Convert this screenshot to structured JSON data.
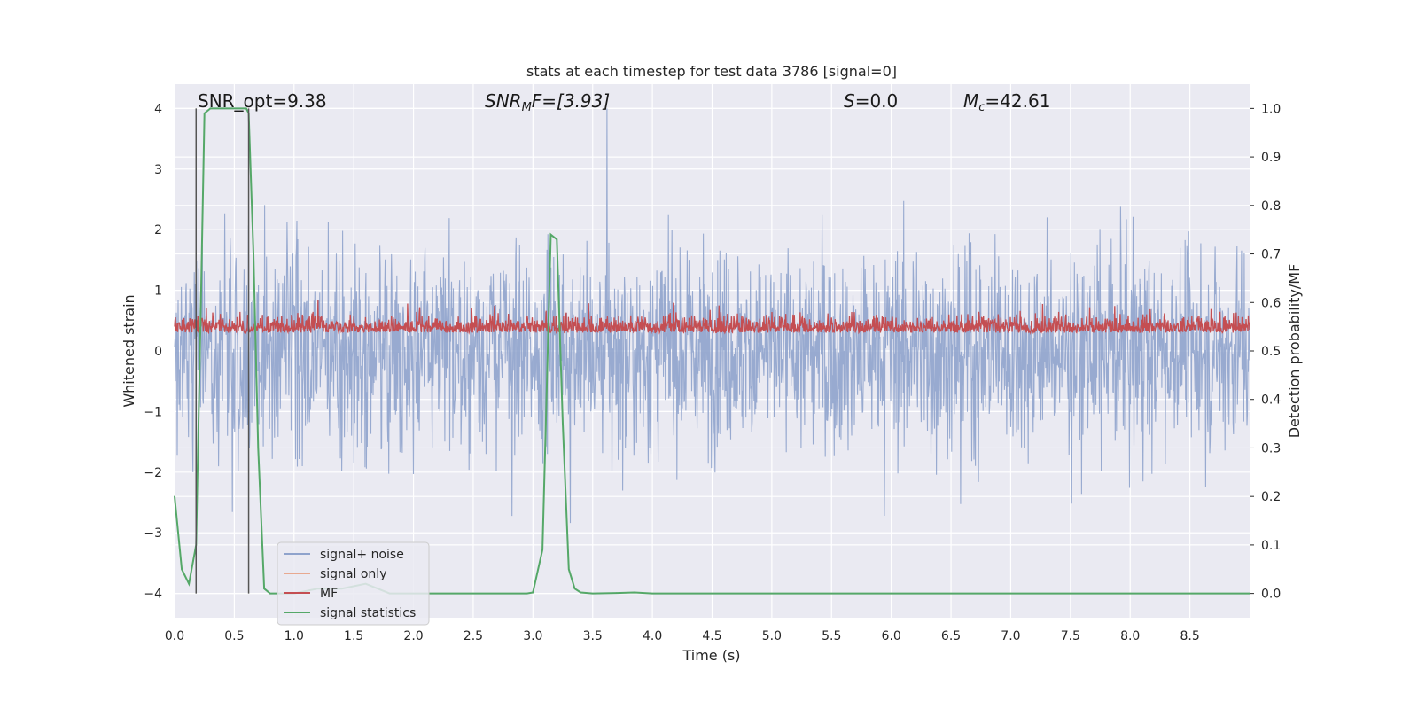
{
  "chart_data": {
    "type": "line",
    "title": "stats at each timestep for test data 3786 [signal=0]",
    "xlabel": "Time (s)",
    "ylabel": "Whitened strain",
    "ylabel_right": "Detection probability/MF",
    "xlim": [
      0,
      9.0
    ],
    "ylim": [
      -4.4,
      4.4
    ],
    "ylim_right": [
      -0.05,
      1.05
    ],
    "xticks": [
      "0.0",
      "0.5",
      "1.0",
      "1.5",
      "2.0",
      "2.5",
      "3.0",
      "3.5",
      "4.0",
      "4.5",
      "5.0",
      "5.5",
      "6.0",
      "6.5",
      "7.0",
      "7.5",
      "8.0",
      "8.5"
    ],
    "xtick_values": [
      0,
      0.5,
      1.0,
      1.5,
      2.0,
      2.5,
      3.0,
      3.5,
      4.0,
      4.5,
      5.0,
      5.5,
      6.0,
      6.5,
      7.0,
      7.5,
      8.0,
      8.5
    ],
    "yticks_left": [
      "4",
      "3",
      "2",
      "1",
      "0",
      "−1",
      "−2",
      "−3",
      "−4"
    ],
    "ytick_values_left": [
      4,
      3,
      2,
      1,
      0,
      -1,
      -2,
      -3,
      -4
    ],
    "yticks_right": [
      "1.0",
      "0.9",
      "0.8",
      "0.7",
      "0.6",
      "0.5",
      "0.4",
      "0.3",
      "0.2",
      "0.1",
      "0.0"
    ],
    "ytick_values_right": [
      1.0,
      0.9,
      0.8,
      0.7,
      0.6,
      0.5,
      0.4,
      0.3,
      0.2,
      0.1,
      0.0
    ],
    "grid": true,
    "legend_placement": "lower-left",
    "annotations": {
      "snr_opt": "SNR_opt=9.38",
      "snr_mf_name": "SNR",
      "snr_mf_sub": "M",
      "snr_mf_rest": "F=[3.93]",
      "s_name": "S",
      "s_rest": "=0.0",
      "mc_name": "M",
      "mc_sub": "c",
      "mc_rest": "=42.61"
    },
    "vlines_x": [
      0.18,
      0.62
    ],
    "series": [
      {
        "name": "signal+ noise",
        "color": "#8fa3cc",
        "axis": "left",
        "kind": "noise",
        "amplitude": 1.0
      },
      {
        "name": "signal only",
        "color": "#e8a990",
        "axis": "left",
        "values": []
      },
      {
        "name": "MF",
        "color": "#c44e52",
        "axis": "left",
        "kind": "noise",
        "baseline": 0.3,
        "amplitude": 0.2
      },
      {
        "name": "signal statistics",
        "color": "#55a868",
        "axis": "right",
        "x": [
          0.0,
          0.06,
          0.12,
          0.18,
          0.22,
          0.25,
          0.3,
          0.4,
          0.5,
          0.6,
          0.62,
          0.66,
          0.7,
          0.75,
          0.8,
          0.9,
          1.0,
          1.2,
          1.4,
          1.6,
          1.8,
          2.0,
          2.5,
          2.95,
          3.0,
          3.08,
          3.15,
          3.2,
          3.25,
          3.3,
          3.35,
          3.4,
          3.5,
          3.7,
          3.85,
          4.0,
          5.0,
          6.0,
          7.0,
          8.0,
          9.0
        ],
        "values": [
          0.2,
          0.05,
          0.02,
          0.1,
          0.6,
          0.99,
          1.0,
          1.0,
          1.0,
          1.0,
          0.99,
          0.7,
          0.3,
          0.01,
          0.0,
          0.0,
          0.0,
          0.01,
          0.01,
          0.02,
          0.0,
          0.0,
          0.0,
          0.0,
          0.002,
          0.09,
          0.74,
          0.73,
          0.35,
          0.05,
          0.01,
          0.002,
          0.0,
          0.001,
          0.002,
          0.0,
          0.0,
          0.0,
          0.0,
          0.0,
          0.0
        ]
      }
    ]
  }
}
